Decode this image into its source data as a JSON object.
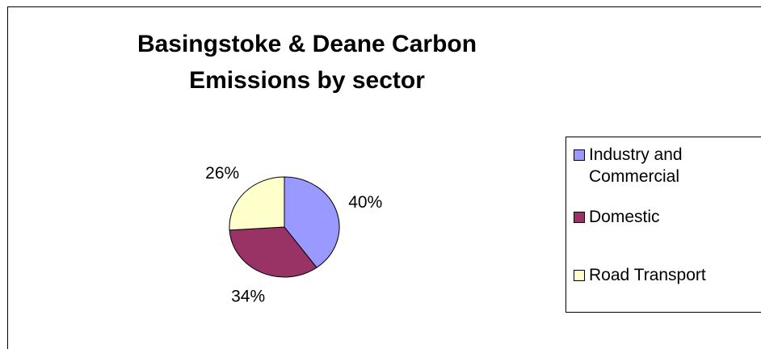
{
  "chart_data": {
    "type": "pie",
    "title": "Basingstoke & Deane Carbon Emissions by sector",
    "title_lines": [
      "Basingstoke & Deane Carbon",
      "Emissions by sector"
    ],
    "categories": [
      "Industry and Commercial",
      "Domestic",
      "Road Transport"
    ],
    "values": [
      40,
      34,
      26
    ],
    "labels": [
      "40%",
      "34%",
      "26%"
    ],
    "colors": [
      "#9999FF",
      "#993366",
      "#FFFFCC"
    ],
    "legend": "right",
    "legend_entries": [
      {
        "text_lines": [
          "Industry and",
          "Commercial"
        ],
        "color": "#9999FF"
      },
      {
        "text_lines": [
          "Domestic"
        ],
        "color": "#993366"
      },
      {
        "text_lines": [
          "Road Transport"
        ],
        "color": "#FFFFCC"
      }
    ]
  }
}
